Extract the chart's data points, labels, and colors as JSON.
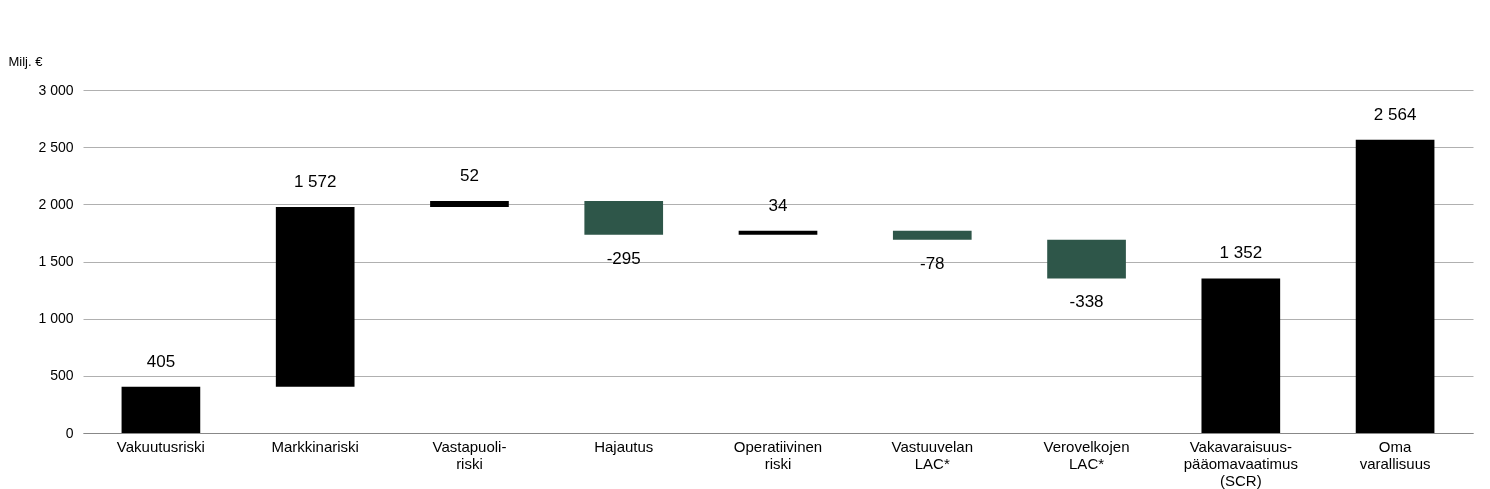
{
  "chart_data": {
    "type": "bar",
    "ylabel": "Milj. €",
    "categories": [
      "Vakuutusriski",
      "Markkinariski",
      "Vastapuoli-\nriski",
      "Hajautus",
      "Operatiivinen\nriski",
      "Vastuuvelan\nLAC*",
      "Verovelkojen\nLAC*",
      "Vakavaraisuus-\npääomavaatimus\n(SCR)",
      "Oma\nvarallisuus"
    ],
    "values": [
      405,
      1572,
      52,
      -295,
      34,
      -78,
      -338,
      1352,
      2564
    ],
    "base": [
      0,
      405,
      1977,
      2029,
      1734,
      1768,
      1690,
      0,
      0
    ],
    "colors": [
      "#000000",
      "#000000",
      "#000000",
      "#2e5649",
      "#000000",
      "#2e5649",
      "#2e5649",
      "#000000",
      "#000000"
    ],
    "value_labels": [
      "405",
      "1 572",
      "52",
      "-295",
      "34",
      "-78",
      "-338",
      "1 352",
      "2 564"
    ],
    "ylim": [
      0,
      3000
    ],
    "yticks": [
      0,
      {
        "value": 500,
        "label": "500"
      },
      {
        "value": 1000,
        "label": "1 000"
      },
      {
        "value": 1500,
        "label": "1 500"
      },
      {
        "value": 2000,
        "label": "2 000"
      },
      {
        "value": 2500,
        "label": "2 500"
      },
      {
        "value": 3000,
        "label": "3 000"
      }
    ],
    "grid": "y"
  }
}
